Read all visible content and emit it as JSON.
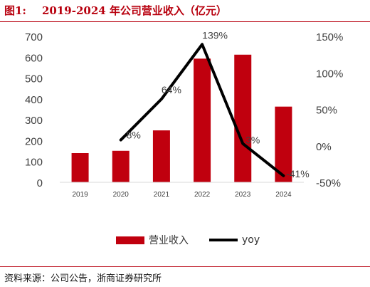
{
  "header": {
    "figure_label": "图1:",
    "title": "2019-2024 年公司营业收入（亿元）"
  },
  "footer": {
    "source": "资料来源：公司公告，浙商证券研究所"
  },
  "chart_data": {
    "type": "bar",
    "categories": [
      "2019",
      "2020",
      "2021",
      "2022",
      "2023",
      "2024"
    ],
    "series": [
      {
        "name": "营业收入",
        "type": "bar",
        "axis": "left",
        "color": "#c0000e",
        "values": [
          140,
          151,
          249,
          593,
          612,
          363
        ]
      },
      {
        "name": "yoy",
        "type": "line",
        "axis": "right",
        "color": "#000000",
        "values": [
          null,
          8,
          64,
          139,
          3,
          -41
        ],
        "labels": [
          "",
          "8%",
          "64%",
          "139%",
          "3%",
          "-41%"
        ]
      }
    ],
    "ylim": [
      0,
      700
    ],
    "y_ticks": [
      "0",
      "100",
      "200",
      "300",
      "400",
      "500",
      "600",
      "700"
    ],
    "y2lim": [
      -50,
      150
    ],
    "y2_ticks": [
      "-50%",
      "0%",
      "50%",
      "100%",
      "150%"
    ],
    "grid": false,
    "legend": "bottom"
  }
}
